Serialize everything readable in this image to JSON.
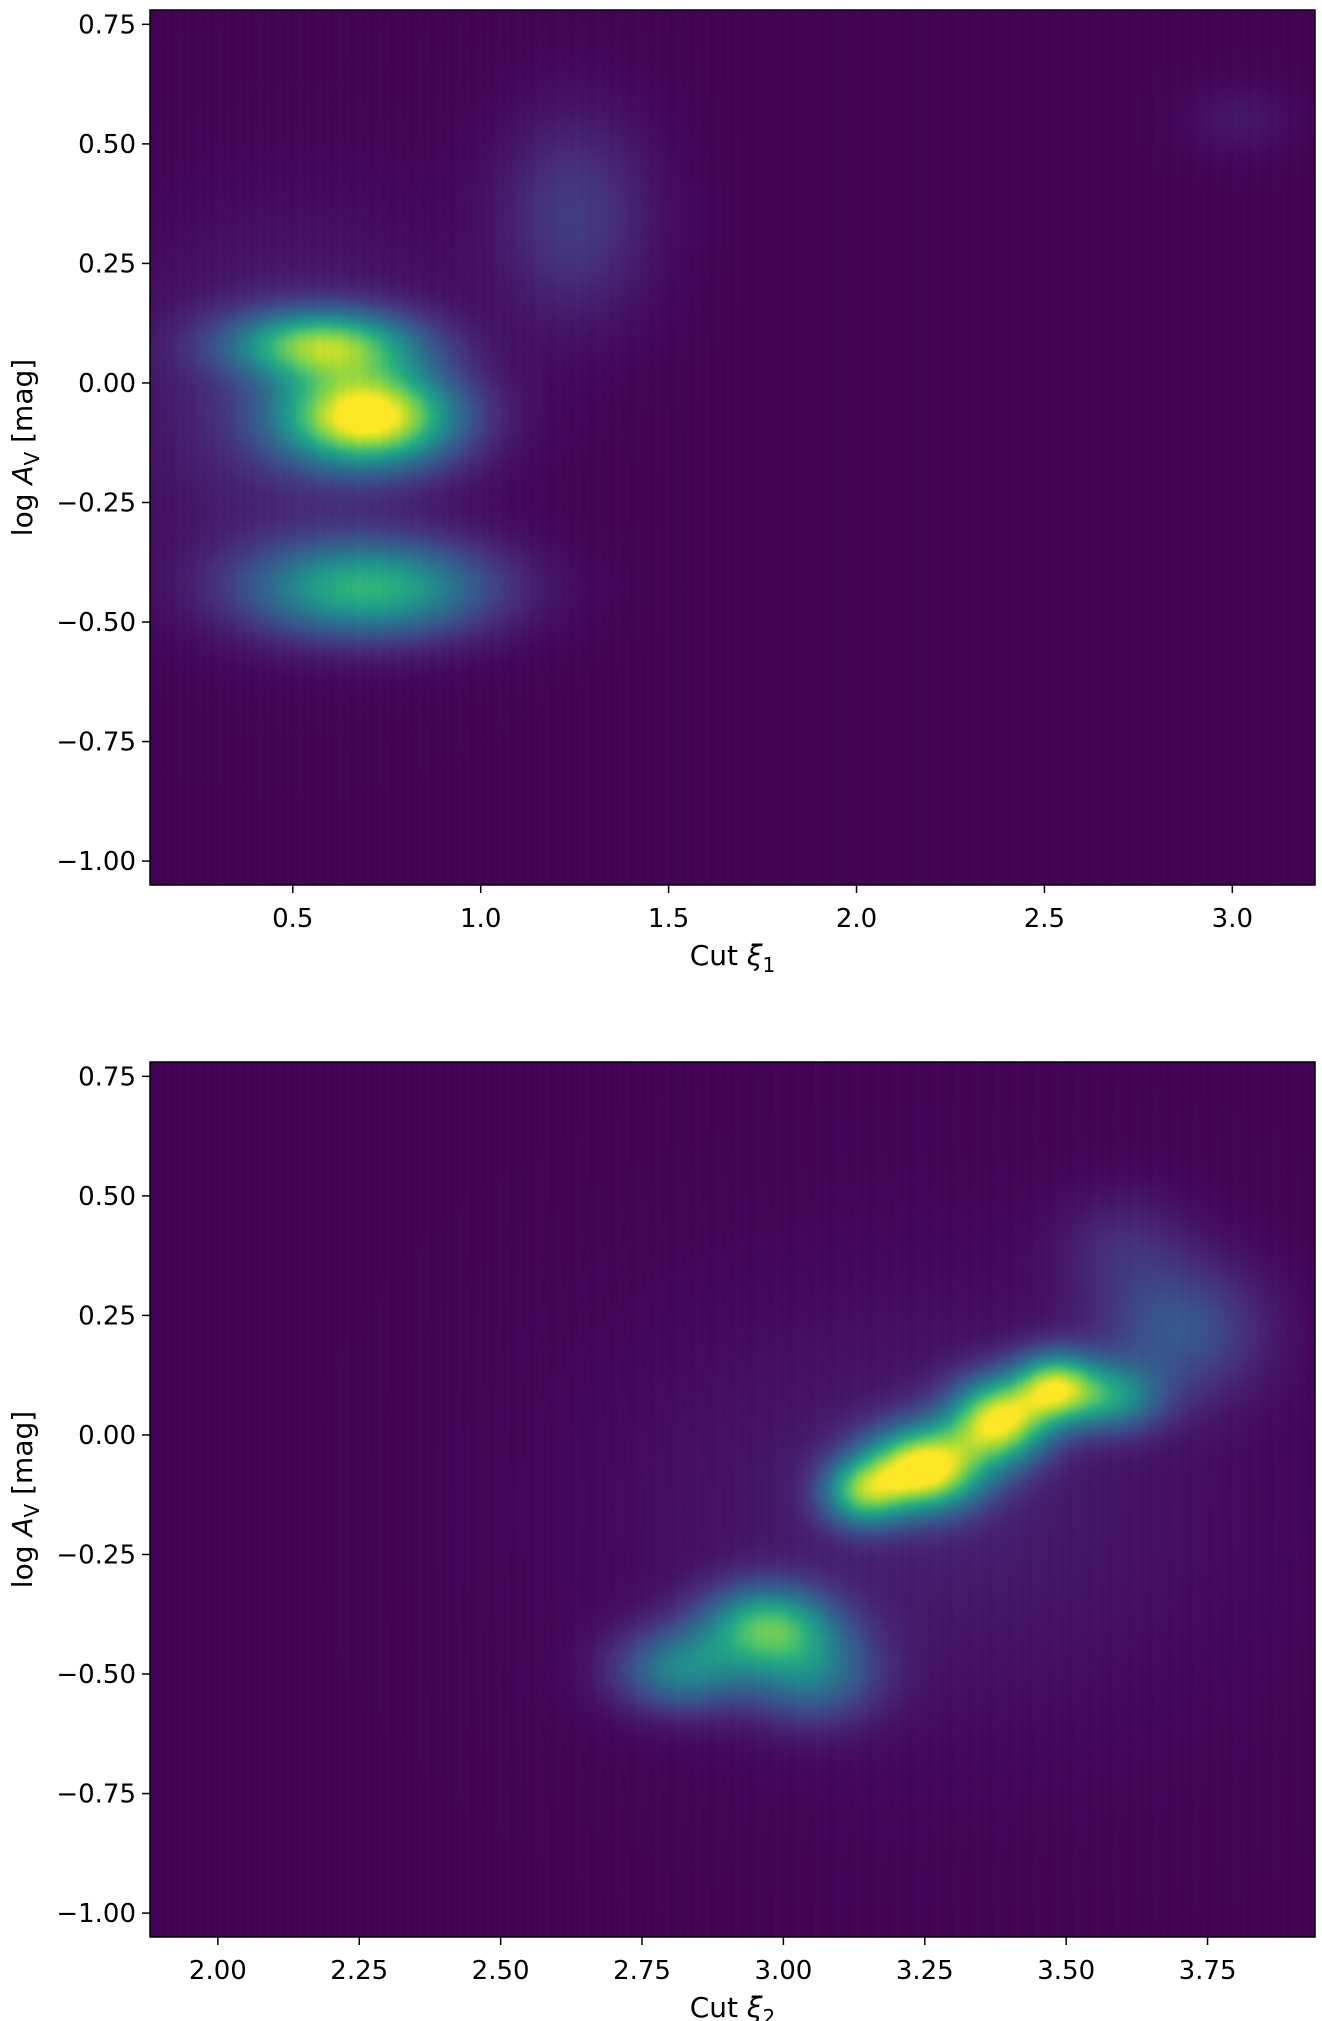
{
  "colormap": "viridis",
  "chart_data": [
    {
      "type": "heatmap",
      "description_of_blobs": "density",
      "xlabel": {
        "prefix": "Cut ",
        "var": "ξ",
        "sub": "1"
      },
      "ylabel": {
        "prefix": "log ",
        "var": "A",
        "sub": "V",
        "suffix": " [mag]"
      },
      "xlim": [
        0.12,
        3.22
      ],
      "ylim": [
        -1.05,
        0.78
      ],
      "xticks": [
        0.5,
        1.0,
        1.5,
        2.0,
        2.5,
        3.0
      ],
      "xtick_labels": [
        "0.5",
        "1.0",
        "1.5",
        "2.0",
        "2.5",
        "3.0"
      ],
      "yticks": [
        0.75,
        0.5,
        0.25,
        0.0,
        -0.25,
        -0.5,
        -0.75,
        -1.0
      ],
      "ytick_labels": [
        "0.75",
        "0.50",
        "0.25",
        "0.00",
        "−0.25",
        "−0.50",
        "−0.75",
        "−1.00"
      ],
      "density_peaks": [
        {
          "x": 0.7,
          "y": -0.07,
          "sx": 0.16,
          "sy": 0.07,
          "a": 1.0
        },
        {
          "x": 0.58,
          "y": 0.08,
          "sx": 0.17,
          "sy": 0.05,
          "a": 0.72
        },
        {
          "x": 0.7,
          "y": -0.43,
          "sx": 0.22,
          "sy": 0.07,
          "a": 0.62
        },
        {
          "x": 1.25,
          "y": 0.35,
          "sx": 0.14,
          "sy": 0.15,
          "a": 0.17
        },
        {
          "x": 0.5,
          "y": -0.05,
          "sx": 0.3,
          "sy": 0.25,
          "a": 0.12
        },
        {
          "x": 3.02,
          "y": 0.55,
          "sx": 0.1,
          "sy": 0.05,
          "a": 0.06
        }
      ]
    },
    {
      "type": "heatmap",
      "xlabel": {
        "prefix": "Cut ",
        "var": "ξ",
        "sub": "2"
      },
      "ylabel": {
        "prefix": "log ",
        "var": "A",
        "sub": "V",
        "suffix": " [mag]"
      },
      "xlim": [
        1.88,
        3.94
      ],
      "ylim": [
        -1.05,
        0.78
      ],
      "xticks": [
        2.0,
        2.25,
        2.5,
        2.75,
        3.0,
        3.25,
        3.5,
        3.75
      ],
      "xtick_labels": [
        "2.00",
        "2.25",
        "2.50",
        "2.75",
        "3.00",
        "3.25",
        "3.50",
        "3.75"
      ],
      "yticks": [
        0.75,
        0.5,
        0.25,
        0.0,
        -0.25,
        -0.5,
        -0.75,
        -1.0
      ],
      "ytick_labels": [
        "0.75",
        "0.50",
        "0.25",
        "0.00",
        "−0.25",
        "−0.50",
        "−0.75",
        "−1.00"
      ],
      "density_peaks": [
        {
          "x": 3.25,
          "y": -0.07,
          "sx": 0.07,
          "sy": 0.06,
          "a": 1.0
        },
        {
          "x": 3.38,
          "y": 0.03,
          "sx": 0.06,
          "sy": 0.06,
          "a": 0.9
        },
        {
          "x": 3.48,
          "y": 0.1,
          "sx": 0.05,
          "sy": 0.05,
          "a": 0.75
        },
        {
          "x": 3.14,
          "y": -0.12,
          "sx": 0.05,
          "sy": 0.05,
          "a": 0.6
        },
        {
          "x": 3.58,
          "y": 0.08,
          "sx": 0.06,
          "sy": 0.05,
          "a": 0.45
        },
        {
          "x": 2.97,
          "y": -0.4,
          "sx": 0.08,
          "sy": 0.06,
          "a": 0.62
        },
        {
          "x": 2.82,
          "y": -0.49,
          "sx": 0.08,
          "sy": 0.06,
          "a": 0.42
        },
        {
          "x": 3.05,
          "y": -0.5,
          "sx": 0.08,
          "sy": 0.07,
          "a": 0.35
        },
        {
          "x": 3.7,
          "y": 0.22,
          "sx": 0.1,
          "sy": 0.1,
          "a": 0.25
        },
        {
          "x": 3.6,
          "y": 0.4,
          "sx": 0.08,
          "sy": 0.08,
          "a": 0.1
        },
        {
          "x": 3.25,
          "y": -0.15,
          "sx": 0.35,
          "sy": 0.3,
          "a": 0.08
        }
      ]
    }
  ]
}
